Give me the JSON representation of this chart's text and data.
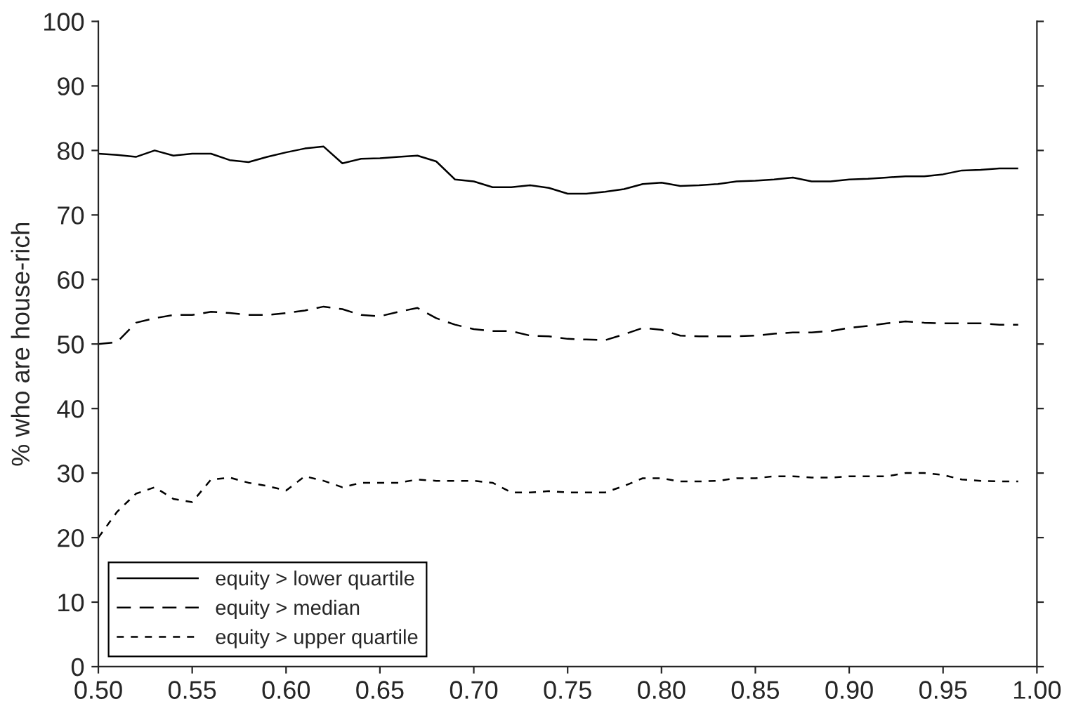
{
  "chart_data": {
    "type": "line",
    "ylabel": "% who are house-rich",
    "x": [
      0.5,
      0.51,
      0.52,
      0.53,
      0.54,
      0.55,
      0.56,
      0.57,
      0.58,
      0.59,
      0.6,
      0.61,
      0.62,
      0.63,
      0.64,
      0.65,
      0.66,
      0.67,
      0.68,
      0.69,
      0.7,
      0.71,
      0.72,
      0.73,
      0.74,
      0.75,
      0.76,
      0.77,
      0.78,
      0.79,
      0.8,
      0.81,
      0.82,
      0.83,
      0.84,
      0.85,
      0.86,
      0.87,
      0.88,
      0.89,
      0.9,
      0.91,
      0.92,
      0.93,
      0.94,
      0.95,
      0.96,
      0.97,
      0.98,
      0.99
    ],
    "series": [
      {
        "name": "equity > lower quartile",
        "color": "#000000",
        "line_style": "solid",
        "values": [
          79.5,
          79.3,
          79,
          80,
          79.2,
          79.5,
          79.5,
          78.5,
          78.2,
          79,
          79.7,
          80.3,
          80.6,
          78,
          78.7,
          78.8,
          79,
          79.2,
          78.3,
          75.5,
          75.2,
          74.3,
          74.3,
          74.6,
          74.2,
          73.3,
          73.3,
          73.6,
          74,
          74.8,
          75,
          74.5,
          74.6,
          74.8,
          75.2,
          75.3,
          75.5,
          75.8,
          75.2,
          75.2,
          75.5,
          75.6,
          75.8,
          76,
          76,
          76.3,
          76.9,
          77,
          77.2,
          77.2
        ]
      },
      {
        "name": "equity > median",
        "color": "#000000",
        "line_style": "dashed",
        "values": [
          50,
          50.3,
          53.3,
          54,
          54.5,
          54.5,
          55,
          54.8,
          54.5,
          54.5,
          54.8,
          55.2,
          55.8,
          55.4,
          54.5,
          54.3,
          55,
          55.6,
          54,
          53,
          52.3,
          52,
          52,
          51.3,
          51.2,
          50.8,
          50.7,
          50.6,
          51.5,
          52.5,
          52.2,
          51.3,
          51.2,
          51.2,
          51.2,
          51.3,
          51.6,
          51.8,
          51.8,
          52,
          52.5,
          52.8,
          53.2,
          53.5,
          53.3,
          53.2,
          53.2,
          53.2,
          53,
          53
        ]
      },
      {
        "name": "equity > upper quartile",
        "color": "#000000",
        "line_style": "dotted",
        "values": [
          20,
          24,
          26.8,
          27.8,
          26,
          25.5,
          29,
          29.3,
          28.5,
          28,
          27.3,
          29.5,
          28.8,
          27.8,
          28.5,
          28.5,
          28.5,
          29,
          28.8,
          28.8,
          28.8,
          28.5,
          27,
          27,
          27.2,
          27,
          27,
          27,
          28,
          29.2,
          29.2,
          28.7,
          28.7,
          28.8,
          29.2,
          29.2,
          29.5,
          29.5,
          29.3,
          29.3,
          29.5,
          29.5,
          29.5,
          30,
          30,
          29.7,
          29,
          28.8,
          28.7,
          28.7
        ]
      }
    ],
    "xlim": [
      0.5,
      1.0
    ],
    "xticks": [
      {
        "value": 0.5,
        "label": "0.50"
      },
      {
        "value": 0.55,
        "label": "0.55"
      },
      {
        "value": 0.6,
        "label": "0.60"
      },
      {
        "value": 0.65,
        "label": "0.65"
      },
      {
        "value": 0.7,
        "label": "0.70"
      },
      {
        "value": 0.75,
        "label": "0.75"
      },
      {
        "value": 0.8,
        "label": "0.80"
      },
      {
        "value": 0.85,
        "label": "0.85"
      },
      {
        "value": 0.9,
        "label": "0.90"
      },
      {
        "value": 0.95,
        "label": "0.95"
      },
      {
        "value": 1.0,
        "label": "1.00"
      }
    ],
    "ylim": [
      0,
      100
    ],
    "yticks": [
      0,
      10,
      20,
      30,
      40,
      50,
      60,
      70,
      80,
      90,
      100
    ],
    "grid": false,
    "legend": "bottom left"
  }
}
